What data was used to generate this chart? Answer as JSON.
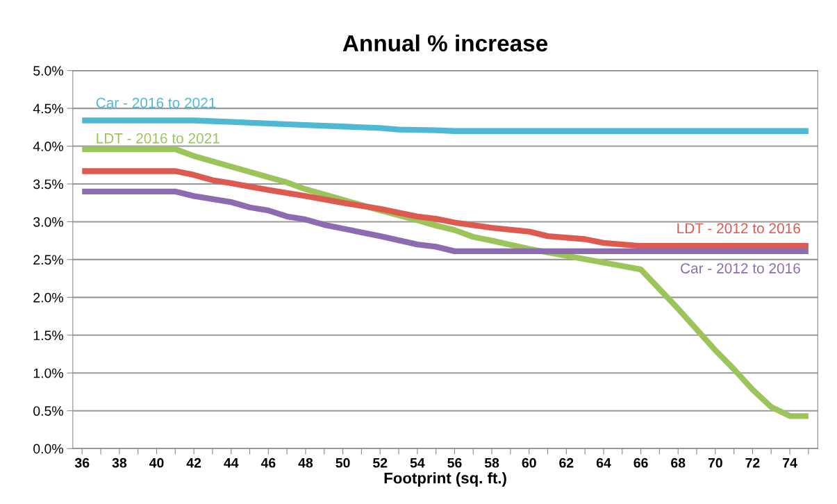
{
  "chart_data": {
    "type": "line",
    "title": "Annual % increase",
    "xlabel": "Footprint (sq. ft.)",
    "xlim": [
      35.5,
      75.5
    ],
    "xticks": [
      36,
      {
        "value": 37,
        "label": null
      },
      38,
      {
        "value": 39,
        "label": null
      },
      40,
      {
        "value": 41,
        "label": null
      },
      42,
      {
        "value": 43,
        "label": null
      },
      44,
      {
        "value": 45,
        "label": null
      },
      46,
      {
        "value": 47,
        "label": null
      },
      48,
      {
        "value": 49,
        "label": null
      },
      50,
      {
        "value": 51,
        "label": null
      },
      52,
      {
        "value": 53,
        "label": null
      },
      54,
      {
        "value": 55,
        "label": null
      },
      56,
      {
        "value": 57,
        "label": null
      },
      58,
      {
        "value": 59,
        "label": null
      },
      60,
      {
        "value": 61,
        "label": null
      },
      62,
      {
        "value": 63,
        "label": null
      },
      64,
      {
        "value": 65,
        "label": null
      },
      66,
      {
        "value": 67,
        "label": null
      },
      68,
      {
        "value": 69,
        "label": null
      },
      70,
      {
        "value": 71,
        "label": null
      },
      72,
      {
        "value": 73,
        "label": null
      },
      74,
      {
        "value": 75,
        "label": null
      }
    ],
    "ylim": [
      0,
      5
    ],
    "yticks": [
      {
        "value": 0,
        "label": "0.0%"
      },
      {
        "value": 0.5,
        "label": "0.5%"
      },
      {
        "value": 1,
        "label": "1.0%"
      },
      {
        "value": 1.5,
        "label": "1.5%"
      },
      {
        "value": 2,
        "label": "2.0%"
      },
      {
        "value": 2.5,
        "label": "2.5%"
      },
      {
        "value": 3,
        "label": "3.0%"
      },
      {
        "value": 3.5,
        "label": "3.5%"
      },
      {
        "value": 4,
        "label": "4.0%"
      },
      {
        "value": 4.5,
        "label": "4.5%"
      },
      {
        "value": 5,
        "label": "5.0%"
      }
    ],
    "grid": "y",
    "legend": false,
    "marker": "none",
    "line_style": "solid",
    "series": [
      {
        "name": "Car - 2016 to 2021",
        "color": "#4fb8d3",
        "x": [
          36,
          41,
          42,
          44,
          46,
          48,
          50,
          52,
          53,
          55,
          56,
          75
        ],
        "values": [
          4.34,
          4.34,
          4.34,
          4.32,
          4.3,
          4.28,
          4.26,
          4.24,
          4.22,
          4.21,
          4.2,
          4.2
        ]
      },
      {
        "name": "LDT - 2016 to 2021",
        "color": "#9cc45a",
        "x": [
          36,
          41,
          42,
          44,
          46,
          47,
          48,
          50,
          52,
          54,
          55,
          56,
          57,
          58,
          60,
          62,
          64,
          66,
          68,
          70,
          71,
          72,
          73,
          74,
          75
        ],
        "values": [
          3.96,
          3.96,
          3.87,
          3.73,
          3.59,
          3.52,
          3.43,
          3.29,
          3.15,
          3.02,
          2.95,
          2.89,
          2.8,
          2.75,
          2.64,
          2.55,
          2.46,
          2.37,
          1.85,
          1.3,
          1.05,
          0.78,
          0.55,
          0.43,
          0.43
        ]
      },
      {
        "name": "LDT - 2012 to 2016",
        "color": "#dc5a50",
        "x": [
          36,
          41,
          42,
          43,
          44,
          46,
          48,
          50,
          52,
          54,
          55,
          56,
          58,
          60,
          61,
          63,
          64,
          66,
          75
        ],
        "values": [
          3.67,
          3.67,
          3.62,
          3.55,
          3.51,
          3.42,
          3.34,
          3.25,
          3.17,
          3.07,
          3.04,
          2.99,
          2.92,
          2.87,
          2.81,
          2.77,
          2.72,
          2.68,
          2.68
        ]
      },
      {
        "name": "Car - 2012 to 2016",
        "color": "#8c6bb0",
        "x": [
          36,
          41,
          42,
          44,
          45,
          46,
          47,
          48,
          49,
          50,
          52,
          54,
          55,
          56,
          75
        ],
        "values": [
          3.4,
          3.4,
          3.34,
          3.26,
          3.19,
          3.15,
          3.07,
          3.03,
          2.96,
          2.91,
          2.81,
          2.7,
          2.67,
          2.61,
          2.61
        ]
      }
    ]
  }
}
